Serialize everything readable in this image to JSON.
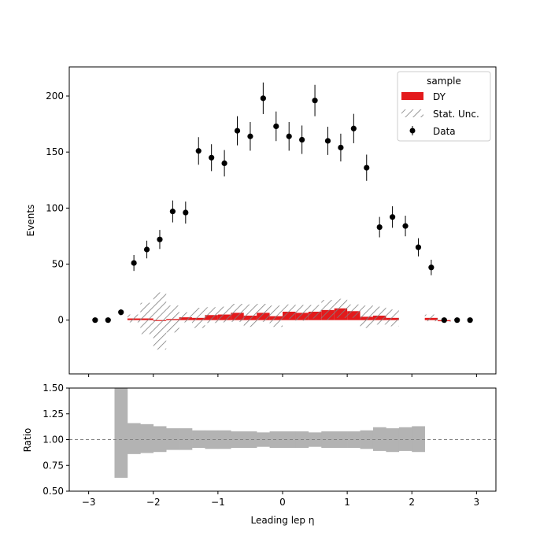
{
  "colors": {
    "dy": "#e31a1c",
    "data": "#000000",
    "hatch": "#7f7f7f",
    "ratio_band": "#b3b3b3",
    "ref_line": "#808080"
  },
  "legend": {
    "title": "sample",
    "entries": [
      {
        "label": "DY",
        "kind": "bar"
      },
      {
        "label": "Stat. Unc.",
        "kind": "hatch"
      },
      {
        "label": "Data",
        "kind": "errorbar"
      }
    ]
  },
  "chart_data": [
    {
      "type": "bar",
      "panel": "main",
      "xlabel": "",
      "ylabel": "Events",
      "xlim": [
        -3.3,
        3.3
      ],
      "ylim": [
        -48,
        226
      ],
      "yticks": [
        0,
        50,
        100,
        150,
        200
      ],
      "xticks": [
        -3,
        -2,
        -1,
        0,
        1,
        2,
        3
      ],
      "bin_edges": [
        -3.0,
        -2.8,
        -2.6,
        -2.4,
        -2.2,
        -2.0,
        -1.8,
        -1.6,
        -1.4,
        -1.2,
        -1.0,
        -0.8,
        -0.6,
        -0.4,
        -0.2,
        0.0,
        0.2,
        0.4,
        0.6,
        0.8,
        1.0,
        1.2,
        1.4,
        1.6,
        1.8,
        2.0,
        2.2,
        2.4,
        2.6,
        2.8,
        3.0
      ],
      "series": [
        {
          "name": "DY",
          "values": [
            0,
            0,
            0,
            1.5,
            1.5,
            -0.8,
            1.0,
            2.5,
            2.0,
            4.5,
            5.0,
            6.5,
            4.0,
            6.5,
            3.5,
            7.5,
            6.5,
            7.5,
            9.0,
            10.5,
            8.0,
            3.0,
            4.0,
            2.0,
            0,
            0,
            2.0,
            -1.0,
            0,
            0
          ],
          "stat_unc": [
            0,
            0,
            0,
            3.5,
            14.0,
            25.5,
            12.0,
            4.5,
            9.0,
            7.0,
            7.0,
            8.0,
            10.0,
            8.0,
            9.5,
            6.5,
            7.0,
            6.0,
            9.0,
            8.5,
            6.0,
            10.0,
            8.0,
            7.5,
            0,
            0,
            3.0,
            0.5,
            0,
            0
          ]
        },
        {
          "name": "Data",
          "x": [
            -2.9,
            -2.7,
            -2.5,
            -2.3,
            -2.1,
            -1.9,
            -1.7,
            -1.5,
            -1.3,
            -1.1,
            -0.9,
            -0.7,
            -0.5,
            -0.3,
            -0.1,
            0.1,
            0.3,
            0.5,
            0.7,
            0.9,
            1.1,
            1.3,
            1.5,
            1.7,
            1.9,
            2.1,
            2.3,
            2.5,
            2.7,
            2.9
          ],
          "values": [
            0,
            0,
            7,
            51,
            63,
            72,
            97,
            96,
            151,
            145,
            140,
            169,
            164,
            198,
            173,
            164,
            161,
            196,
            160,
            154,
            171,
            136,
            83,
            92,
            84,
            65,
            47,
            0,
            0,
            0
          ],
          "errors": [
            0,
            0,
            2.6,
            7.1,
            7.9,
            8.5,
            9.8,
            9.8,
            12.3,
            12.0,
            11.8,
            13.0,
            12.8,
            14.1,
            13.2,
            12.8,
            12.7,
            14.0,
            12.6,
            12.4,
            13.1,
            11.7,
            9.1,
            9.6,
            9.2,
            8.1,
            6.9,
            0,
            0,
            0
          ]
        }
      ]
    },
    {
      "type": "bar",
      "panel": "ratio",
      "xlabel": "Leading lep η",
      "ylabel": "Ratio",
      "xlim": [
        -3.3,
        3.3
      ],
      "ylim": [
        0.5,
        1.5
      ],
      "yticks": [
        0.5,
        0.75,
        1.0,
        1.25,
        1.5
      ],
      "ytick_labels": [
        "0.50",
        "0.75",
        "1.00",
        "1.25",
        "1.50"
      ],
      "xticks": [
        -3,
        -2,
        -1,
        0,
        1,
        2,
        3
      ],
      "reference_line": 1.0,
      "band_edges": [
        -2.6,
        -2.4,
        -2.2,
        -2.0,
        -1.8,
        -1.6,
        -1.4,
        -1.2,
        -1.0,
        -0.8,
        -0.6,
        -0.4,
        -0.2,
        0.0,
        0.2,
        0.4,
        0.6,
        0.8,
        1.0,
        1.2,
        1.4,
        1.6,
        1.8,
        2.0,
        2.2
      ],
      "band_low": [
        0.63,
        0.86,
        0.87,
        0.88,
        0.9,
        0.9,
        0.92,
        0.91,
        0.91,
        0.92,
        0.92,
        0.93,
        0.92,
        0.92,
        0.92,
        0.93,
        0.92,
        0.92,
        0.92,
        0.91,
        0.89,
        0.88,
        0.89,
        0.88
      ],
      "band_high": [
        1.5,
        1.16,
        1.15,
        1.13,
        1.11,
        1.11,
        1.09,
        1.09,
        1.09,
        1.08,
        1.08,
        1.07,
        1.08,
        1.08,
        1.08,
        1.07,
        1.08,
        1.08,
        1.08,
        1.09,
        1.12,
        1.11,
        1.12,
        1.13
      ]
    }
  ]
}
